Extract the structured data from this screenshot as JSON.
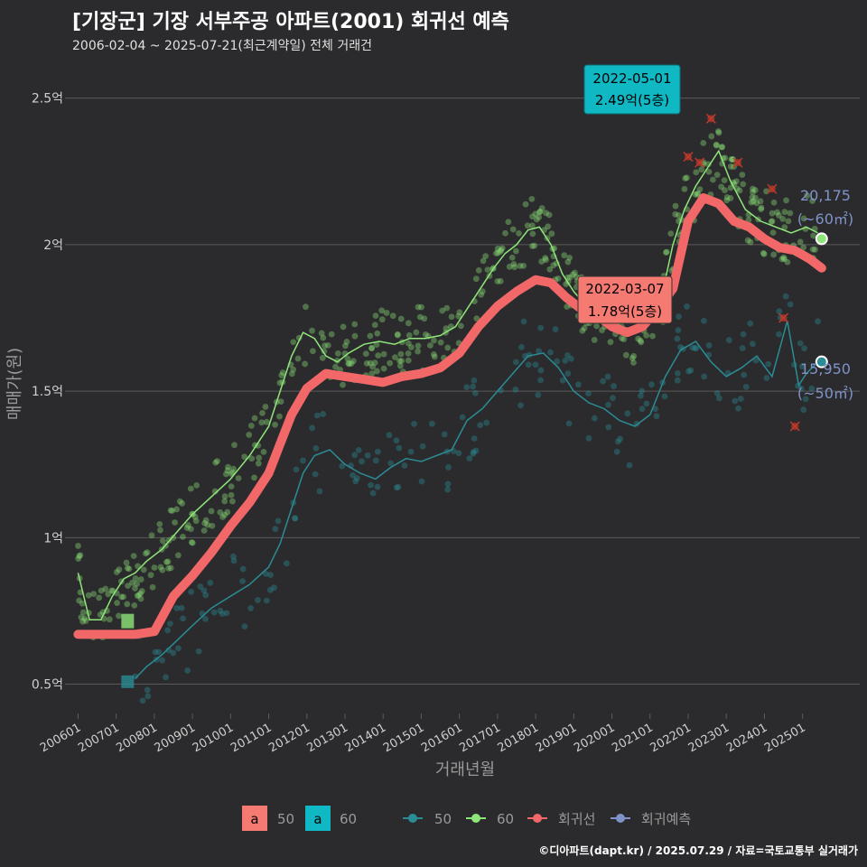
{
  "title": "[기장군] 기장 서부주공 아파트(2001) 회귀선 예측",
  "subtitle": "2006-02-04 ~ 2025-07-21(최근계약일) 전체 거래건",
  "caption": "©디아파트(dapt.kr) / 2025.07.29 / 자료=국토교통부 실거래가",
  "colors": {
    "background": "#2b2b2d",
    "grid": "#5a5a5a",
    "s50": "#2a8c94",
    "s60": "#8ee67a",
    "regression": "#f26868",
    "forecast": "#7f93c8",
    "label60_bg": "#10b8c4",
    "label_reg_bg": "#f47a72",
    "outlier": "#c0392b"
  },
  "chart_data": {
    "type": "line",
    "title": "[기장군] 기장 서부주공 아파트(2001) 회귀선 예측",
    "subtitle": "2006-02-04 ~ 2025-07-21(최근계약일) 전체 거래건",
    "xlabel": "거래년월",
    "ylabel": "매매가(원)",
    "x_range": [
      2005.8,
      2026.5
    ],
    "ylim": [
      0.4,
      2.65
    ],
    "y_ticks": [
      {
        "value": 0.5,
        "label": "0.5억"
      },
      {
        "value": 1.0,
        "label": "1억"
      },
      {
        "value": 1.5,
        "label": "1.5억"
      },
      {
        "value": 2.0,
        "label": "2억"
      },
      {
        "value": 2.5,
        "label": "2.5억"
      }
    ],
    "x_ticks": [
      "200601",
      "200701",
      "200801",
      "200901",
      "201001",
      "201101",
      "201201",
      "201301",
      "201401",
      "201501",
      "201601",
      "201701",
      "201801",
      "201901",
      "202001",
      "202101",
      "202201",
      "202301",
      "202401",
      "202501"
    ],
    "grid": true,
    "legend_position": "bottom",
    "legend": {
      "fill_keys": [
        {
          "glyph": "a",
          "label": "50"
        },
        {
          "glyph": "a",
          "label": "60"
        }
      ],
      "line_keys": [
        {
          "label": "50"
        },
        {
          "label": "60"
        },
        {
          "label": "회귀선"
        },
        {
          "label": "회귀예측"
        }
      ]
    },
    "series": [
      {
        "name": "60",
        "x": [
          2006.0,
          2006.3,
          2006.6,
          2006.9,
          2007.2,
          2007.5,
          2007.8,
          2008.2,
          2008.6,
          2009.0,
          2009.5,
          2010.0,
          2010.5,
          2011.0,
          2011.3,
          2011.6,
          2011.9,
          2012.2,
          2012.5,
          2012.8,
          2013.1,
          2013.5,
          2013.9,
          2014.3,
          2014.7,
          2015.1,
          2015.5,
          2015.9,
          2016.3,
          2016.6,
          2016.9,
          2017.2,
          2017.5,
          2017.8,
          2018.1,
          2018.4,
          2018.7,
          2019.0,
          2019.4,
          2019.8,
          2020.2,
          2020.6,
          2021.0,
          2021.3,
          2021.6,
          2021.9,
          2022.2,
          2022.5,
          2022.8,
          2023.1,
          2023.5,
          2023.9,
          2024.3,
          2024.7,
          2025.1,
          2025.4
        ],
        "values": [
          0.88,
          0.72,
          0.72,
          0.8,
          0.86,
          0.88,
          0.92,
          0.96,
          1.02,
          1.08,
          1.14,
          1.2,
          1.28,
          1.38,
          1.5,
          1.62,
          1.7,
          1.68,
          1.62,
          1.6,
          1.63,
          1.66,
          1.67,
          1.66,
          1.68,
          1.68,
          1.69,
          1.72,
          1.8,
          1.86,
          1.92,
          1.97,
          2.0,
          2.05,
          2.06,
          2.0,
          1.9,
          1.84,
          1.78,
          1.76,
          1.72,
          1.7,
          1.74,
          1.82,
          2.0,
          2.12,
          2.2,
          2.26,
          2.32,
          2.22,
          2.12,
          2.08,
          2.06,
          2.04,
          2.06,
          2.04
        ]
      },
      {
        "name": "50",
        "x": [
          2007.5,
          2007.8,
          2008.2,
          2008.6,
          2009.0,
          2009.5,
          2010.0,
          2010.5,
          2011.0,
          2011.3,
          2011.6,
          2011.9,
          2012.2,
          2012.6,
          2013.0,
          2013.4,
          2013.8,
          2014.2,
          2014.6,
          2015.0,
          2015.4,
          2015.8,
          2016.2,
          2016.6,
          2017.0,
          2017.4,
          2017.8,
          2018.2,
          2018.6,
          2019.0,
          2019.4,
          2019.8,
          2020.2,
          2020.6,
          2021.0,
          2021.4,
          2021.8,
          2022.2,
          2022.6,
          2023.0,
          2023.4,
          2023.8,
          2024.2,
          2024.6,
          2024.9,
          2025.1,
          2025.4
        ],
        "values": [
          0.52,
          0.56,
          0.6,
          0.65,
          0.7,
          0.76,
          0.8,
          0.84,
          0.9,
          0.98,
          1.1,
          1.22,
          1.28,
          1.3,
          1.25,
          1.22,
          1.2,
          1.24,
          1.27,
          1.26,
          1.28,
          1.3,
          1.4,
          1.44,
          1.5,
          1.56,
          1.62,
          1.63,
          1.58,
          1.5,
          1.46,
          1.44,
          1.4,
          1.38,
          1.42,
          1.55,
          1.64,
          1.67,
          1.6,
          1.55,
          1.58,
          1.62,
          1.55,
          1.74,
          1.52,
          1.56,
          1.6
        ]
      },
      {
        "name": "회귀선",
        "x": [
          2006.0,
          2006.5,
          2007.0,
          2007.5,
          2008.0,
          2008.5,
          2009.0,
          2009.5,
          2010.0,
          2010.5,
          2011.0,
          2011.3,
          2011.6,
          2012.0,
          2012.5,
          2013.0,
          2013.5,
          2014.0,
          2014.5,
          2015.0,
          2015.5,
          2016.0,
          2016.5,
          2017.0,
          2017.5,
          2018.0,
          2018.4,
          2018.8,
          2019.2,
          2019.6,
          2020.0,
          2020.4,
          2020.8,
          2021.2,
          2021.6,
          2022.0,
          2022.4,
          2022.8,
          2023.2,
          2023.6,
          2024.0,
          2024.4,
          2024.8,
          2025.2,
          2025.5
        ],
        "values": [
          0.67,
          0.67,
          0.67,
          0.67,
          0.68,
          0.8,
          0.87,
          0.95,
          1.04,
          1.12,
          1.22,
          1.32,
          1.42,
          1.51,
          1.56,
          1.55,
          1.54,
          1.53,
          1.55,
          1.56,
          1.58,
          1.63,
          1.72,
          1.79,
          1.84,
          1.88,
          1.87,
          1.82,
          1.78,
          1.76,
          1.72,
          1.7,
          1.72,
          1.78,
          1.85,
          2.08,
          2.16,
          2.14,
          2.08,
          2.06,
          2.02,
          1.99,
          1.98,
          1.95,
          1.92
        ]
      },
      {
        "name": "회귀예측",
        "x": [
          2025.5
        ],
        "values": [
          2.02
        ]
      }
    ],
    "annotations": [
      {
        "date": "2022-05-01",
        "value": "2.49억(5층)",
        "x": 2022.33,
        "y": 2.49,
        "series": "60"
      },
      {
        "date": "2022-03-07",
        "value": "1.78억(5층)",
        "x": 2022.18,
        "y": 1.78,
        "series": "회귀선"
      },
      {
        "count": "20,175",
        "area": "(~60㎡)",
        "x": 2025.5,
        "y": 2.02
      },
      {
        "count": "15,950",
        "area": "(~50㎡)",
        "x": 2025.5,
        "y": 1.6
      }
    ],
    "outliers_x": [
      2022.0,
      2022.3,
      2022.6,
      2023.3,
      2024.2,
      2024.5,
      2024.8
    ],
    "outliers_y": [
      2.3,
      2.28,
      2.43,
      2.28,
      2.19,
      1.75,
      1.38
    ]
  }
}
